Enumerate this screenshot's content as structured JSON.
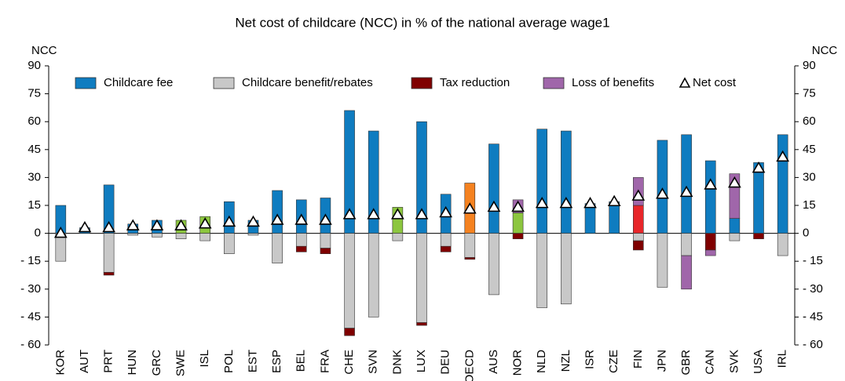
{
  "chart_data": {
    "type": "stacked-bar",
    "title": "Net cost of childcare (NCC) in % of the national average wage1",
    "y_label": "NCC",
    "y2_label": "NCC",
    "categories": [
      "KOR",
      "AUT",
      "PRT",
      "HUN",
      "GRC",
      "SWE",
      "ISL",
      "POL",
      "EST",
      "ESP",
      "BEL",
      "FRA",
      "CHE",
      "SVN",
      "DNK",
      "LUX",
      "DEU",
      "OECD",
      "AUS",
      "NOR",
      "NLD",
      "NZL",
      "ISR",
      "CZE",
      "FIN",
      "JPN",
      "GBR",
      "CAN",
      "SVK",
      "USA",
      "IRL"
    ],
    "series": [
      {
        "name": "Childcare fee",
        "color": "#0f7cc0",
        "values": [
          15,
          3,
          26,
          5,
          7,
          7,
          9,
          17,
          7,
          23,
          18,
          19,
          66,
          55,
          14,
          60,
          21,
          27,
          48,
          11,
          56,
          55,
          16,
          17,
          15,
          50,
          53,
          39,
          8,
          38,
          53
        ]
      },
      {
        "name": "Childcare benefit/rebates",
        "color": "#c8c8c8",
        "values": [
          -15,
          0,
          -21,
          -1,
          -2,
          -3,
          -4,
          -11,
          -1,
          -16,
          -7,
          -8,
          -51,
          -45,
          -4,
          -48,
          -7,
          -13,
          -33,
          0,
          -40,
          -38,
          0,
          0,
          -4,
          -29,
          -12,
          0,
          -4,
          0,
          -12
        ]
      },
      {
        "name": "Tax reduction",
        "color": "#7f0000",
        "values": [
          0,
          0,
          -1.5,
          0,
          0,
          0,
          0,
          0,
          0,
          0,
          -3,
          -3,
          -4,
          0,
          0,
          -1.5,
          -3,
          -1,
          0,
          -3,
          0,
          0,
          0,
          0,
          -5,
          0,
          0,
          -9,
          0,
          -3,
          0
        ]
      },
      {
        "name": "Loss of benefits",
        "color": "#a066aa",
        "values": [
          0,
          0,
          0,
          0,
          0,
          0,
          0,
          0,
          0,
          0,
          0,
          0,
          0,
          0,
          0,
          0,
          0,
          0,
          0,
          7,
          0,
          0,
          0,
          0,
          15,
          0,
          -18,
          -3,
          24,
          0,
          0
        ]
      },
      {
        "name": "Net cost",
        "marker": "triangle",
        "values": [
          0,
          3,
          3,
          4,
          4,
          4,
          5,
          6,
          6,
          7,
          7,
          7,
          10,
          10,
          10,
          10,
          11,
          13,
          14,
          14,
          16,
          16,
          16,
          17,
          20,
          21,
          22,
          26,
          27,
          35,
          41
        ]
      }
    ],
    "fee_highlight_colors": {
      "SWE": "#8cc63f",
      "ISL": "#8cc63f",
      "DNK": "#8cc63f",
      "NOR": "#8cc63f",
      "OECD": "#f58220",
      "FIN": "#e8262a"
    },
    "ylim": [
      -60,
      90
    ],
    "yticks": [
      {
        "value": -60,
        "label": "- 60"
      },
      {
        "value": -45,
        "label": "- 45"
      },
      {
        "value": -30,
        "label": "- 30"
      },
      {
        "value": -15,
        "label": "- 15"
      },
      0,
      15,
      30,
      45,
      60,
      75,
      90
    ],
    "legend": "top"
  }
}
